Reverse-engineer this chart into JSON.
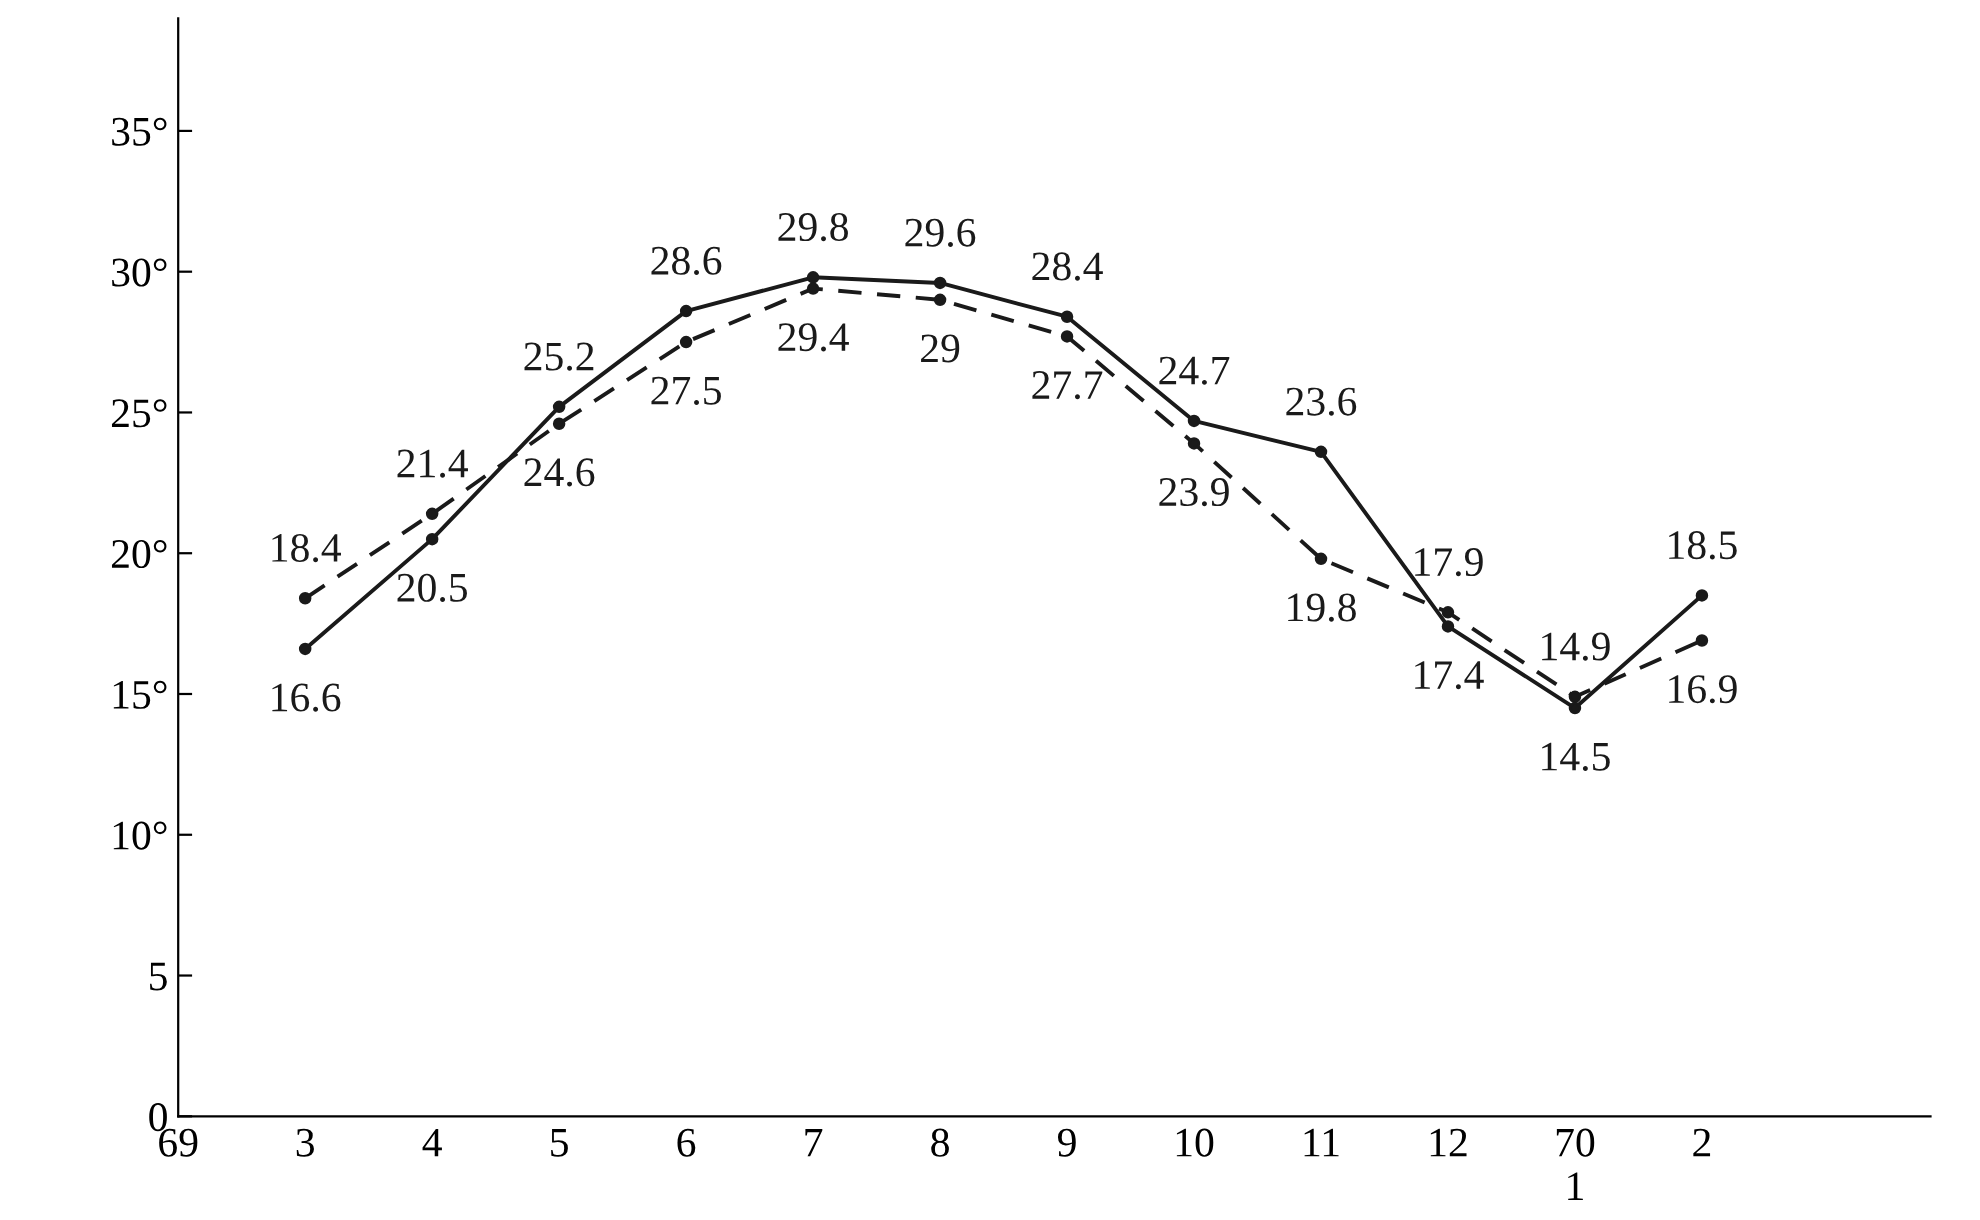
{
  "chart_data": {
    "type": "line",
    "categories": [
      "69",
      "3",
      "4",
      "5",
      "6",
      "7",
      "8",
      "9",
      "10",
      "11",
      "12",
      "70\n1",
      "2"
    ],
    "series": [
      {
        "color": "#1a1a1a",
        "line_style": "solid",
        "values": [
          null,
          16.6,
          20.5,
          25.2,
          28.6,
          29.8,
          29.6,
          28.4,
          24.7,
          23.6,
          17.4,
          14.5,
          18.5
        ]
      },
      {
        "color": "#1a1a1a",
        "line_style": "dashed",
        "values": [
          null,
          18.4,
          21.4,
          24.6,
          27.5,
          29.4,
          29,
          27.7,
          23.9,
          19.8,
          17.9,
          14.9,
          16.9
        ]
      }
    ],
    "ylim": [
      0,
      39
    ],
    "yticks": [
      0,
      5,
      {
        "value": 10,
        "label": "10°"
      },
      {
        "value": 15,
        "label": "15°"
      },
      {
        "value": 20,
        "label": "20°"
      },
      {
        "value": 25,
        "label": "25°"
      },
      {
        "value": 30,
        "label": "30°"
      },
      {
        "value": 35,
        "label": "35°"
      }
    ],
    "data_labels": true,
    "marker": "circle",
    "grid": false,
    "legend": false
  }
}
